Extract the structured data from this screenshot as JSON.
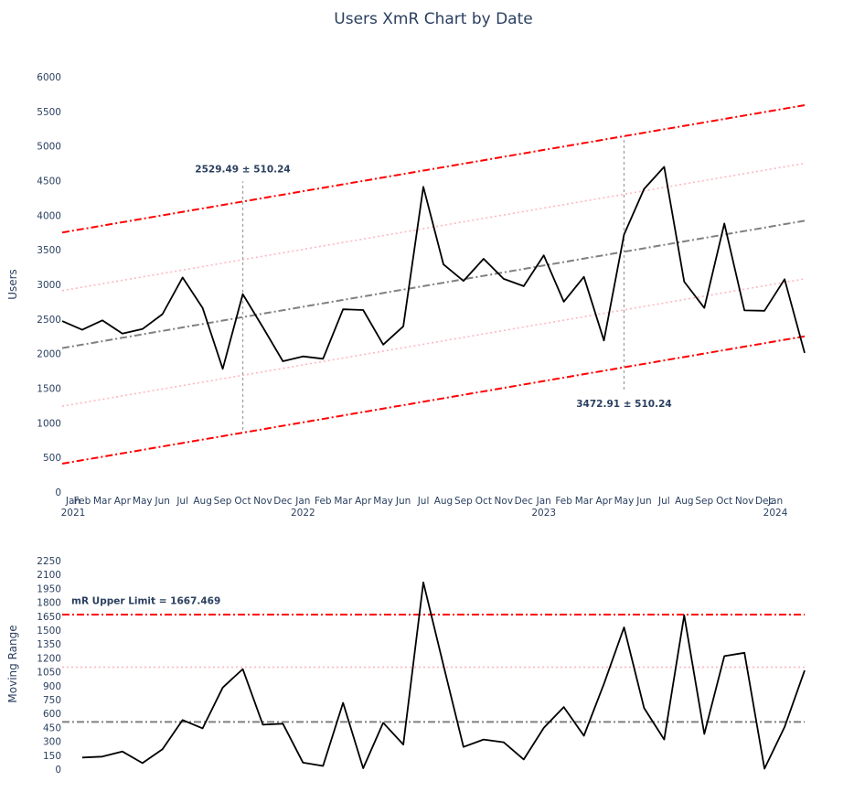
{
  "chart_data": [
    {
      "type": "line",
      "title": "Users XmR Chart by Date",
      "xlabel": "",
      "ylabel": "Users",
      "x_ticks": [
        "Jan\n2021",
        "Feb",
        "Mar",
        "Apr",
        "May",
        "Jun",
        "Jul",
        "Aug",
        "Sep",
        "Oct",
        "Nov",
        "Dec",
        "Jan\n2022",
        "Feb",
        "Mar",
        "Apr",
        "May",
        "Jun",
        "Jul",
        "Aug",
        "Sep",
        "Oct",
        "Nov",
        "Dec",
        "Jan\n2023",
        "Feb",
        "Mar",
        "Apr",
        "May",
        "Jun",
        "Jul",
        "Aug",
        "Sep",
        "Oct",
        "Nov",
        "Dec",
        "Jan\n2024"
      ],
      "y_ticks": [
        0,
        500,
        1000,
        1500,
        2000,
        2500,
        3000,
        3500,
        4000,
        4500,
        5000,
        5500,
        6000
      ],
      "ylim": [
        0,
        6000
      ],
      "x": [
        "2021-01",
        "2021-02",
        "2021-03",
        "2021-04",
        "2021-05",
        "2021-06",
        "2021-07",
        "2021-08",
        "2021-09",
        "2021-10",
        "2021-11",
        "2021-12",
        "2022-01",
        "2022-02",
        "2022-03",
        "2022-04",
        "2022-05",
        "2022-06",
        "2022-07",
        "2022-08",
        "2022-09",
        "2022-10",
        "2022-11",
        "2022-12",
        "2023-01",
        "2023-02",
        "2023-03",
        "2023-04",
        "2023-05",
        "2023-06",
        "2023-07",
        "2023-08",
        "2023-09",
        "2023-10",
        "2023-11",
        "2023-12",
        "2024-01",
        "2024-02"
      ],
      "series": [
        {
          "values": [
            2470,
            2345,
            2480,
            2290,
            2355,
            2570,
            3100,
            2660,
            1780,
            2860,
            2380,
            1890,
            1960,
            1925,
            2640,
            2630,
            2130,
            2395,
            4410,
            3290,
            3050,
            3370,
            3080,
            2975,
            3420,
            2750,
            3110,
            2190,
            3720,
            4380,
            4700,
            3040,
            2660,
            3880,
            2625,
            2620,
            3075,
            2010
          ],
          "color": "#000000"
        }
      ],
      "reference_lines": [
        {
          "name": "upper limit",
          "x": [
            "2021-01",
            "2024-02"
          ],
          "y": [
            3750,
            5590
          ],
          "color": "#ff0000",
          "dash": "dashdot"
        },
        {
          "name": "upper mid",
          "x": [
            "2021-01",
            "2024-02"
          ],
          "y": [
            2910,
            4750
          ],
          "color": "#ffb6c1",
          "dash": "dot"
        },
        {
          "name": "center",
          "x": [
            "2021-01",
            "2024-02"
          ],
          "y": [
            2080,
            3920
          ],
          "color": "#808080",
          "dash": "dashdot"
        },
        {
          "name": "lower mid",
          "x": [
            "2021-01",
            "2024-02"
          ],
          "y": [
            1240,
            3080
          ],
          "color": "#ffb6c1",
          "dash": "dot"
        },
        {
          "name": "lower limit",
          "x": [
            "2021-01",
            "2024-02"
          ],
          "y": [
            410,
            2250
          ],
          "color": "#ff0000",
          "dash": "dashdot"
        }
      ],
      "markers": [
        {
          "x": "2021-10",
          "y_from": 900,
          "y_to": 4490,
          "color": "#a0a0a0"
        },
        {
          "x": "2023-05",
          "y_from": 1480,
          "y_to": 5140,
          "color": "#a0a0a0"
        }
      ],
      "annotations": [
        {
          "text": "2529.49 ± 510.24",
          "x": "2021-10",
          "y": 4620
        },
        {
          "text": "3472.91 ± 510.24",
          "x": "2023-05",
          "y": 1230
        }
      ]
    },
    {
      "type": "line",
      "title": "",
      "xlabel": "",
      "ylabel": "Moving Range",
      "y_ticks": [
        0,
        150,
        300,
        450,
        600,
        750,
        900,
        1050,
        1200,
        1350,
        1500,
        1650,
        1800,
        1950,
        2100,
        2250
      ],
      "ylim": [
        0,
        2250
      ],
      "x": [
        "2021-02",
        "2021-03",
        "2021-04",
        "2021-05",
        "2021-06",
        "2021-07",
        "2021-08",
        "2021-09",
        "2021-10",
        "2021-11",
        "2021-12",
        "2022-01",
        "2022-02",
        "2022-03",
        "2022-04",
        "2022-05",
        "2022-06",
        "2022-07",
        "2022-08",
        "2022-09",
        "2022-10",
        "2022-11",
        "2022-12",
        "2023-01",
        "2023-02",
        "2023-03",
        "2023-04",
        "2023-05",
        "2023-06",
        "2023-07",
        "2023-08",
        "2023-09",
        "2023-10",
        "2023-11",
        "2023-12",
        "2024-01",
        "2024-02"
      ],
      "series": [
        {
          "values": [
            125,
            135,
            190,
            65,
            215,
            530,
            440,
            880,
            1080,
            480,
            490,
            70,
            35,
            715,
            10,
            500,
            265,
            2015,
            1120,
            240,
            320,
            290,
            105,
            445,
            670,
            360,
            920,
            1530,
            660,
            320,
            1660,
            380,
            1220,
            1255,
            5,
            455,
            1065
          ],
          "color": "#000000"
        }
      ],
      "reference_lines": [
        {
          "name": "mR upper limit",
          "y": 1667.469,
          "color": "#ff0000",
          "dash": "dashdot"
        },
        {
          "name": "upper mid",
          "y": 1100,
          "color": "#ffb6c1",
          "dash": "dot"
        },
        {
          "name": "center",
          "y": 510,
          "color": "#808080",
          "dash": "dashdot"
        }
      ],
      "annotations": [
        {
          "text": "mR Upper Limit = 1667.469",
          "x": "2021-01",
          "y": 1780
        }
      ]
    }
  ]
}
